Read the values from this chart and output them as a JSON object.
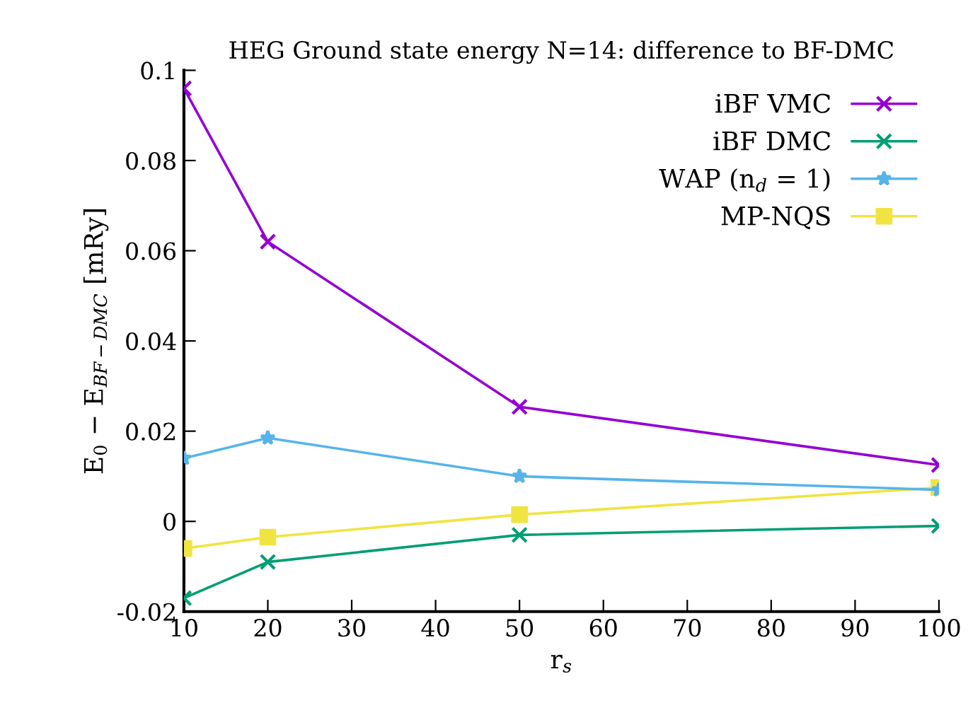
{
  "chart_data": {
    "type": "line",
    "title": "HEG Ground state energy N=14: difference to BF-DMC",
    "xlabel": "r$_{s}$",
    "ylabel": "E$_{0}$ − E$_{BF−DMC}$ [mRy]",
    "x": [
      10,
      20,
      50,
      100
    ],
    "xlim": [
      10,
      100
    ],
    "xticks": [
      10,
      20,
      30,
      40,
      50,
      60,
      70,
      80,
      90,
      100
    ],
    "ylim": [
      -0.02,
      0.1
    ],
    "yticks": [
      -0.02,
      0,
      0.02,
      0.04,
      0.06,
      0.08,
      0.1
    ],
    "grid": false,
    "legend": "top right",
    "line_style": "solid",
    "series": [
      {
        "name": "iBF VMC",
        "color": "#9400d3",
        "marker": "cross",
        "values": [
          0.096,
          0.062,
          0.0254,
          0.0125
        ]
      },
      {
        "name": "iBF DMC",
        "color": "#009e73",
        "marker": "cross",
        "values": [
          -0.017,
          -0.009,
          -0.003,
          -0.001
        ]
      },
      {
        "name": "WAP (n$_{d}$ = 1)",
        "color": "#56b4e9",
        "marker": "star",
        "values": [
          0.014,
          0.0185,
          0.01,
          0.007
        ]
      },
      {
        "name": "MP-NQS",
        "color": "#f0e442",
        "marker": "square",
        "values": [
          -0.006,
          -0.0035,
          0.0015,
          0.0075
        ]
      }
    ]
  }
}
